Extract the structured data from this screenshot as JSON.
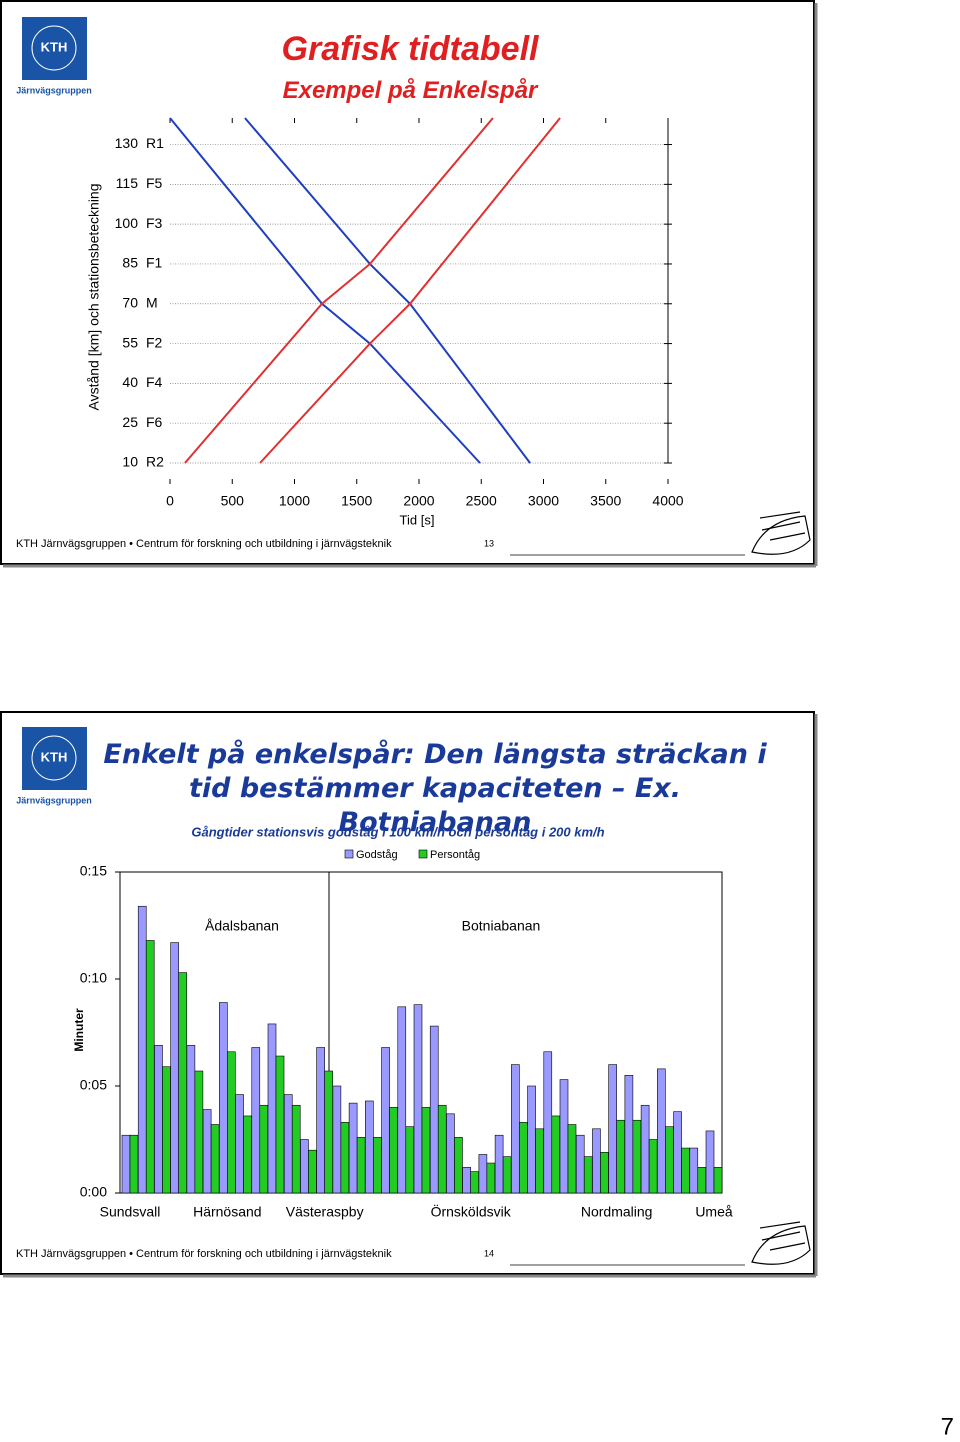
{
  "slides": [
    {
      "logo": "KTH",
      "group": "Järnvägsgruppen",
      "title": "Grafisk tidtabell",
      "subtitle": "Exempel på Enkelspår",
      "footer": "KTH Järnvägsgruppen • Centrum för forskning och utbildning i järnvägsteknik",
      "page": "13"
    },
    {
      "logo": "KTH",
      "group": "Järnvägsgruppen",
      "title": "Enkelt på enkelspår: Den längsta sträckan i tid bestämmer kapaciteten – Ex. Botniabanan",
      "footer": "KTH Järnvägsgruppen • Centrum för forskning och utbildning i järnvägsteknik",
      "page": "14"
    }
  ],
  "page_number": "7",
  "chart_data": [
    {
      "type": "line",
      "x_label": "Tid [s]",
      "y_label": "Avstånd [km] och stationsbeteckning",
      "xlim": [
        0,
        4000
      ],
      "xticks": [
        0,
        500,
        1000,
        1500,
        2000,
        2500,
        3000,
        3500,
        4000
      ],
      "ylim": [
        10,
        140
      ],
      "yticks": [
        10,
        25,
        40,
        55,
        70,
        85,
        100,
        115,
        130
      ],
      "stations": [
        "R2",
        "F6",
        "F4",
        "F2",
        "M",
        "F1",
        "F3",
        "F5",
        "R1"
      ],
      "grid": true,
      "series": [
        {
          "color": "#1f3fbf",
          "x": [
            0,
            1221,
            1606,
            2490
          ],
          "values": [
            140,
            70,
            55,
            10
          ]
        },
        {
          "color": "#1f3fbf",
          "x": [
            602,
            1606,
            1928,
            2892
          ],
          "values": [
            140,
            85,
            70,
            10
          ]
        },
        {
          "color": "#e03030",
          "x": [
            120,
            1221,
            1606,
            2594
          ],
          "values": [
            10,
            70,
            85,
            140
          ]
        },
        {
          "color": "#e03030",
          "x": [
            723,
            1606,
            1928,
            3133
          ],
          "values": [
            10,
            55,
            70,
            140
          ]
        }
      ]
    },
    {
      "type": "bar",
      "title": "Gångtider stationsvis godståg i 100 km/h och persontåg i 200 km/h",
      "y_label": "Minuter",
      "annotations": [
        "Ådalsbanan",
        "Botniabanan"
      ],
      "ylim": [
        0,
        15
      ],
      "yticks": [
        {
          "value": 0,
          "label": "0:00"
        },
        {
          "value": 5,
          "label": "0:05"
        },
        {
          "value": 10,
          "label": "0:10"
        },
        {
          "value": 15,
          "label": "0:15"
        }
      ],
      "categories": [
        "Sundsvall",
        null,
        null,
        null,
        null,
        null,
        "Härnösand",
        null,
        null,
        null,
        null,
        null,
        "Västeraspby",
        null,
        null,
        null,
        null,
        null,
        null,
        null,
        null,
        "Örnsköldsvik",
        null,
        null,
        null,
        null,
        null,
        null,
        null,
        null,
        "Nordmaling",
        null,
        null,
        null,
        null,
        null,
        "Umeå"
      ],
      "series": [
        {
          "name": "Godståg",
          "color": "#9999ff",
          "values": [
            2.7,
            13.4,
            6.9,
            11.7,
            6.9,
            3.9,
            8.9,
            4.6,
            6.8,
            7.9,
            4.6,
            2.5,
            6.8,
            5.0,
            4.2,
            4.3,
            6.8,
            8.7,
            8.8,
            7.8,
            3.7,
            1.2,
            1.8,
            2.7,
            6.0,
            5.0,
            6.6,
            5.3,
            2.7,
            3.0,
            6.0,
            5.5,
            4.1,
            5.8,
            3.8,
            2.1,
            2.9
          ]
        },
        {
          "name": "Persontåg",
          "color": "#22cc22",
          "values": [
            2.7,
            11.8,
            5.9,
            10.3,
            5.7,
            3.2,
            6.6,
            3.6,
            4.1,
            6.4,
            4.1,
            2.0,
            5.7,
            3.3,
            2.6,
            2.6,
            4.0,
            3.1,
            4.0,
            4.1,
            2.6,
            1.0,
            1.4,
            1.7,
            3.3,
            3.0,
            3.6,
            3.2,
            1.7,
            1.9,
            3.4,
            3.4,
            2.5,
            3.1,
            2.1,
            1.2,
            1.2
          ]
        }
      ]
    }
  ]
}
